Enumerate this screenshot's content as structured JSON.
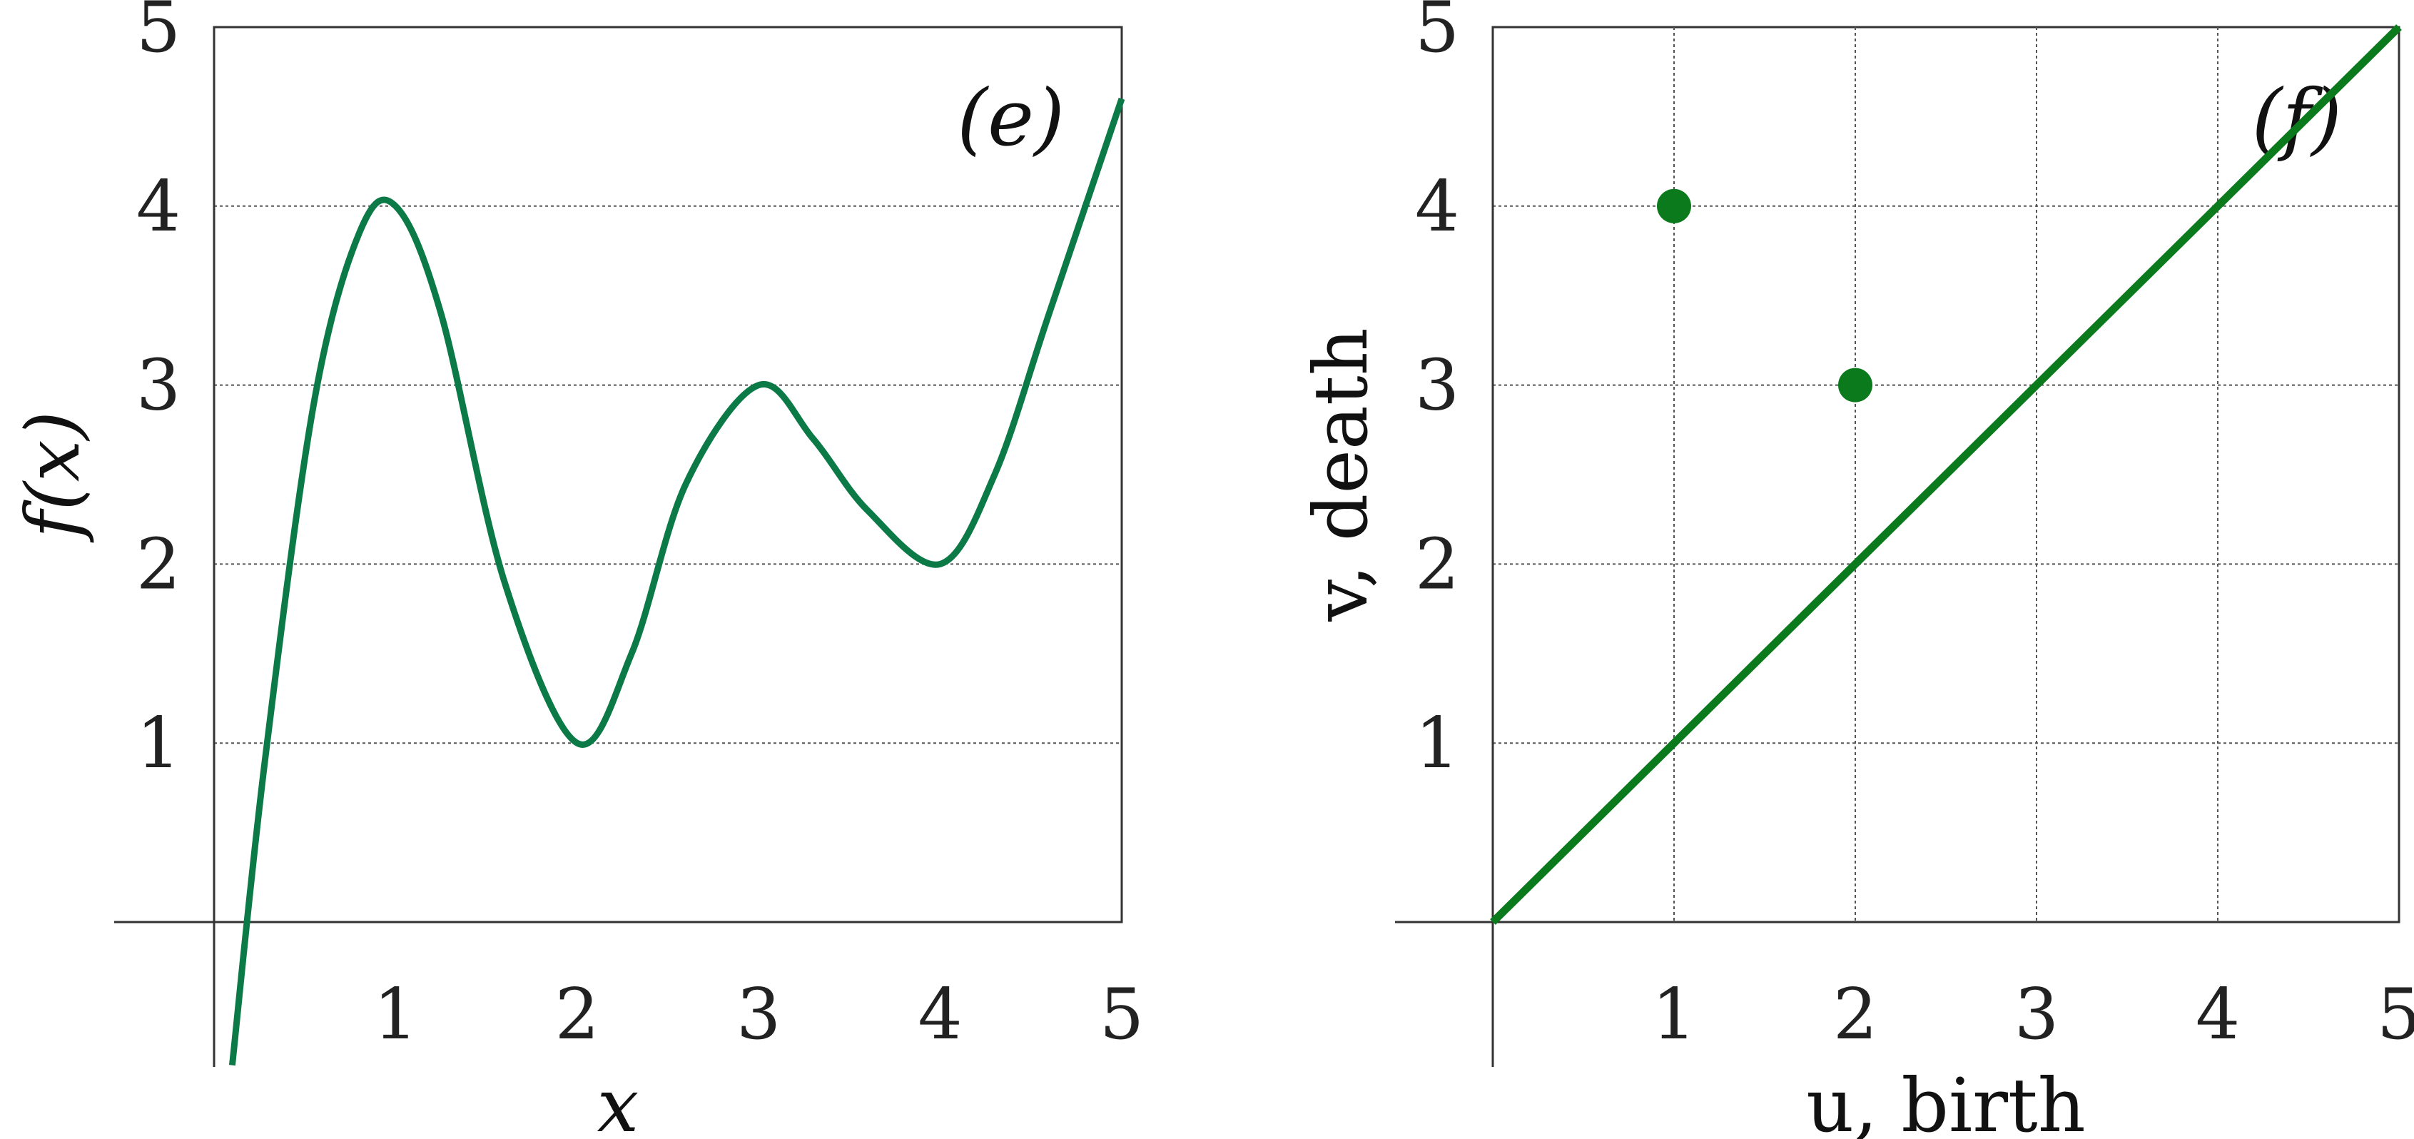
{
  "chart_data": [
    {
      "type": "line",
      "panel_label": "(e)",
      "title": "",
      "xlabel": "x",
      "ylabel": "f(x)",
      "xlim": [
        -0.55,
        5
      ],
      "ylim": [
        -0.8,
        5
      ],
      "xticks": [
        "1",
        "2",
        "3",
        "4",
        "5"
      ],
      "yticks": [
        "1",
        "2",
        "3",
        "4",
        "5"
      ],
      "grid": "horizontal",
      "color": "#0b7a47",
      "series": [
        {
          "x": [
            0.1,
            0.28,
            0.55,
            0.8,
            1.0,
            1.25,
            1.6,
            2.0,
            2.3,
            2.6,
            3.0,
            3.3,
            3.6,
            4.0,
            4.3,
            4.6,
            5.0
          ],
          "y": [
            -0.8,
            0.9,
            2.9,
            3.85,
            4.0,
            3.4,
            1.9,
            1.0,
            1.5,
            2.45,
            3.0,
            2.7,
            2.3,
            2.0,
            2.5,
            3.4,
            4.6
          ]
        }
      ]
    },
    {
      "type": "scatter",
      "panel_label": "(f)",
      "title": "",
      "xlabel": "u, birth",
      "ylabel": "v, death",
      "xlim": [
        0,
        5
      ],
      "ylim": [
        -0.8,
        5
      ],
      "xticks": [
        "1",
        "2",
        "3",
        "4",
        "5"
      ],
      "yticks": [
        "1",
        "2",
        "3",
        "4",
        "5"
      ],
      "grid": "both",
      "color": "#0b7a1c",
      "diagonal": {
        "x": [
          0,
          5
        ],
        "y": [
          0,
          5
        ]
      },
      "points": [
        {
          "x": 1,
          "y": 4
        },
        {
          "x": 2,
          "y": 3
        }
      ]
    }
  ]
}
